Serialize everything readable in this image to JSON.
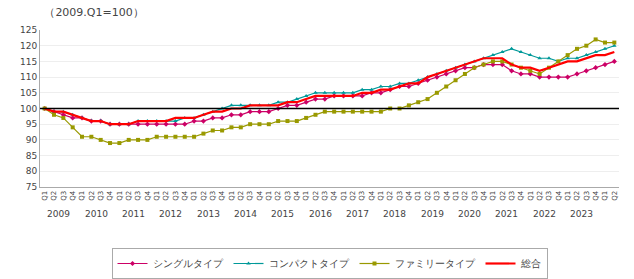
{
  "chart_data": {
    "type": "line",
    "title": "（2009.Q1=100）",
    "categories": [
      "Q1",
      "Q2",
      "Q3",
      "Q4",
      "Q1",
      "Q2",
      "Q3",
      "Q4",
      "Q1",
      "Q2",
      "Q3",
      "Q4",
      "Q1",
      "Q2",
      "Q3",
      "Q4",
      "Q1",
      "Q2",
      "Q3",
      "Q4",
      "Q1",
      "Q2",
      "Q3",
      "Q4",
      "Q1",
      "Q2",
      "Q3",
      "Q4",
      "Q1",
      "Q2",
      "Q3",
      "Q4",
      "Q1",
      "Q2",
      "Q3",
      "Q4",
      "Q1",
      "Q2",
      "Q3",
      "Q4",
      "Q1",
      "Q2",
      "Q3",
      "Q4",
      "Q1",
      "Q2",
      "Q3",
      "Q4",
      "Q1",
      "Q2",
      "Q3",
      "Q4",
      "Q1",
      "Q2",
      "Q3",
      "Q4",
      "Q1",
      "Q2",
      "Q3",
      "Q4",
      "Q1",
      "Q2"
    ],
    "annotations": [
      "2009",
      "2010",
      "2011",
      "2012",
      "2013",
      "2014",
      "2015",
      "2016",
      "2017",
      "2018",
      "2019",
      "2020",
      "2021",
      "2022",
      "2023"
    ],
    "series": [
      {
        "name": "シングルタイプ",
        "color": "#cc0066",
        "marker": "diamond",
        "values": [
          100,
          99,
          98,
          97,
          97,
          96,
          96,
          95,
          95,
          95,
          95,
          95,
          95,
          95,
          95,
          95,
          96,
          96,
          97,
          97,
          98,
          98,
          99,
          99,
          99,
          100,
          101,
          101,
          102,
          103,
          103,
          104,
          104,
          104,
          104,
          105,
          105,
          106,
          107,
          107,
          108,
          109,
          110,
          111,
          112,
          113,
          113,
          114,
          114,
          114,
          112,
          111,
          111,
          110,
          110,
          110,
          110,
          111,
          112,
          113,
          114,
          115
        ]
      },
      {
        "name": "コンパクトタイプ",
        "color": "#009999",
        "marker": "triangle-up",
        "values": [
          100,
          99,
          99,
          98,
          97,
          96,
          96,
          95,
          95,
          95,
          96,
          96,
          96,
          96,
          96,
          97,
          97,
          98,
          99,
          100,
          101,
          101,
          101,
          101,
          101,
          102,
          102,
          103,
          104,
          105,
          105,
          105,
          105,
          105,
          106,
          106,
          107,
          107,
          108,
          108,
          109,
          110,
          111,
          112,
          113,
          114,
          115,
          116,
          117,
          118,
          119,
          118,
          117,
          116,
          116,
          115,
          116,
          116,
          117,
          118,
          119,
          120
        ]
      },
      {
        "name": "ファミリータイプ",
        "color": "#999900",
        "marker": "square",
        "values": [
          100,
          98,
          97,
          94,
          91,
          91,
          90,
          89,
          89,
          90,
          90,
          90,
          91,
          91,
          91,
          91,
          91,
          92,
          93,
          93,
          94,
          94,
          95,
          95,
          95,
          96,
          96,
          96,
          97,
          98,
          99,
          99,
          99,
          99,
          99,
          99,
          99,
          100,
          100,
          101,
          102,
          103,
          105,
          107,
          109,
          111,
          113,
          114,
          115,
          115,
          114,
          113,
          112,
          111,
          113,
          115,
          117,
          119,
          120,
          122,
          121,
          121
        ]
      },
      {
        "name": "総合",
        "color": "#ff0000",
        "values": [
          100,
          99,
          99,
          98,
          97,
          96,
          96,
          95,
          95,
          95,
          96,
          96,
          96,
          96,
          97,
          97,
          97,
          98,
          99,
          99,
          100,
          100,
          101,
          101,
          101,
          101,
          102,
          102,
          103,
          104,
          104,
          104,
          104,
          104,
          105,
          105,
          106,
          106,
          107,
          108,
          108,
          110,
          111,
          112,
          113,
          114,
          115,
          116,
          116,
          116,
          114,
          113,
          113,
          112,
          113,
          114,
          115,
          115,
          116,
          117,
          117,
          118
        ]
      }
    ],
    "hline": 100,
    "ylim": [
      75,
      125
    ],
    "yticks": [
      75,
      80,
      85,
      90,
      95,
      100,
      105,
      110,
      115,
      120,
      125
    ],
    "grid": true,
    "legend": "bottom"
  }
}
